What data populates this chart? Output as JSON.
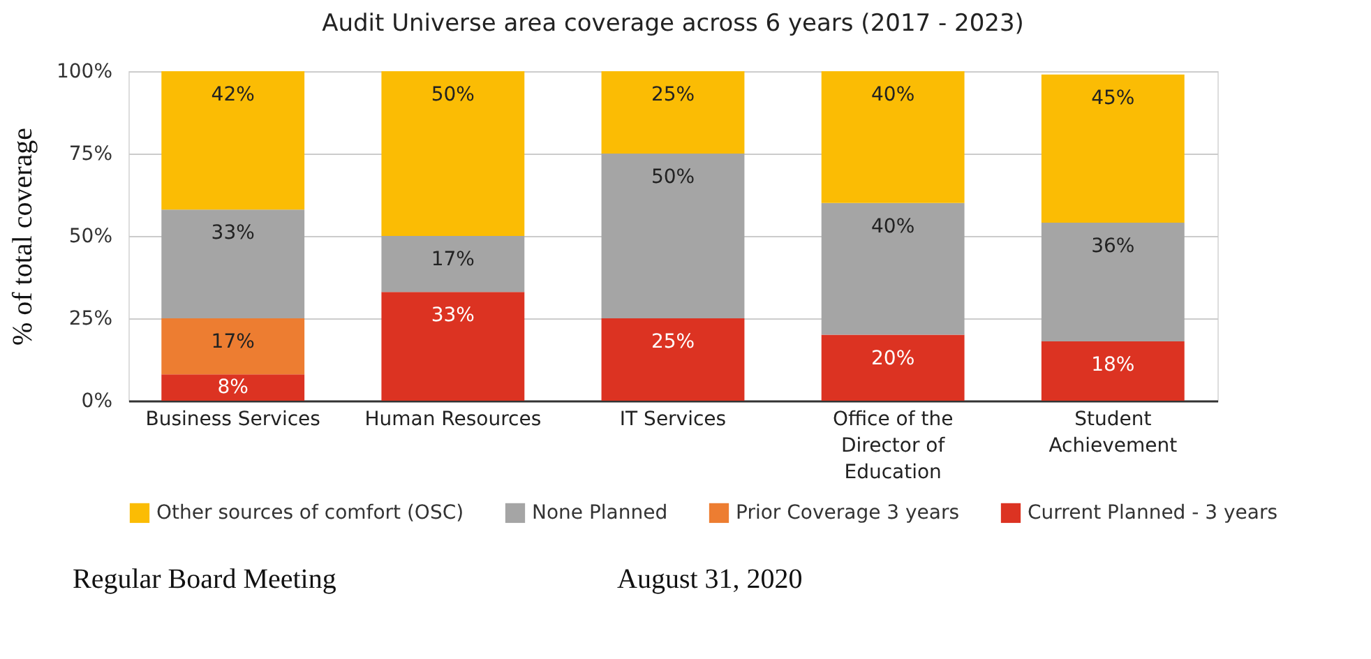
{
  "chart_data": {
    "type": "bar",
    "stacked": true,
    "title": "Audit Universe area coverage across 6 years (2017 - 2023)",
    "ylabel": "% of total coverage",
    "categories": [
      "Business Services",
      "Human Resources",
      "IT Services",
      "Office of the Director of Education",
      "Student Achievement"
    ],
    "series": [
      {
        "name": "Current Planned  - 3 years",
        "color": "#dc3322",
        "values": [
          8,
          33,
          25,
          20,
          18
        ],
        "value_labels": [
          "8%",
          "33%",
          "25%",
          "20%",
          "18%"
        ]
      },
      {
        "name": "Prior Coverage 3 years",
        "color": "#ed7d31",
        "values": [
          17,
          null,
          null,
          null,
          null
        ],
        "value_labels": [
          "17%",
          null,
          null,
          null,
          null
        ]
      },
      {
        "name": "None Planned",
        "color": "#a5a5a5",
        "values": [
          33,
          17,
          50,
          40,
          36
        ],
        "value_labels": [
          "33%",
          "17%",
          "50%",
          "40%",
          "36%"
        ]
      },
      {
        "name": "Other sources of comfort (OSC)",
        "color": "#fbbc04",
        "values": [
          42,
          50,
          25,
          40,
          45
        ],
        "value_labels": [
          "42%",
          "50%",
          "25%",
          "40%",
          "45%"
        ]
      }
    ],
    "ylim": [
      0,
      100
    ],
    "yticks": [
      {
        "value": 0,
        "label": "0%"
      },
      {
        "value": 25,
        "label": "25%"
      },
      {
        "value": 50,
        "label": "50%"
      },
      {
        "value": 75,
        "label": "75%"
      },
      {
        "value": 100,
        "label": "100%"
      }
    ],
    "grid": "y",
    "legend": "bottom",
    "annotations": [
      "Regular Board Meeting",
      "August 31, 2020"
    ]
  }
}
